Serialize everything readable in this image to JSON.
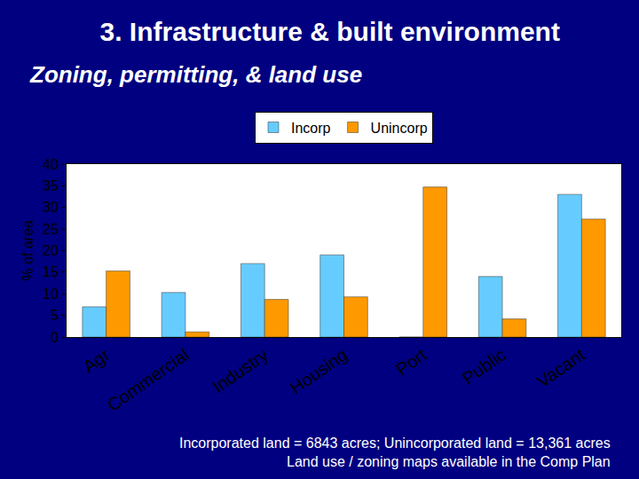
{
  "chart_data": {
    "type": "bar",
    "title": "3. Infrastructure & built environment",
    "subtitle": "Zoning, permitting, & land use",
    "y_label": "% of area",
    "categories": [
      "Agr",
      "Commercial",
      "Industry",
      "Housing",
      "Port",
      "Public",
      "Vacant"
    ],
    "series": [
      {
        "name": "Incorp",
        "color": "#66CCFF",
        "values": [
          7,
          10.3,
          17,
          19,
          0,
          14,
          33
        ]
      },
      {
        "name": "Unincorp",
        "color": "#FF9900",
        "values": [
          15.3,
          1.2,
          8.7,
          9.3,
          34.7,
          4.2,
          27.3
        ]
      }
    ],
    "ylim": [
      0,
      40
    ],
    "yticks": [
      0,
      5,
      10,
      15,
      20,
      25,
      30,
      35,
      40
    ],
    "grid": false,
    "legend": "top",
    "notes": [
      "Incorporated land = 6843 acres; Unincorporated land = 13,361 acres",
      "Land use / zoning maps available in the Comp Plan"
    ]
  }
}
